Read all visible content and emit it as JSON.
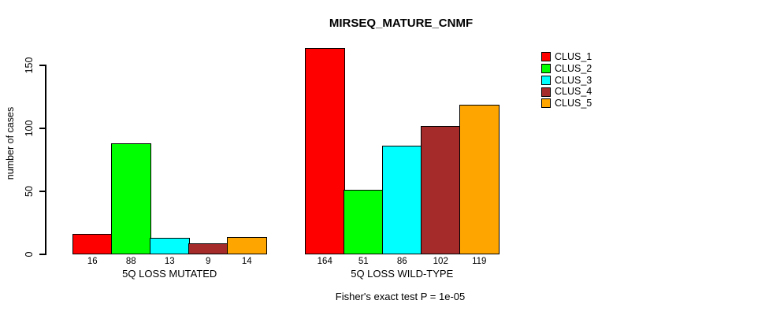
{
  "figure": {
    "background": "#FFFFFF",
    "axis_color": "#000000",
    "bar_outline_color": "#000000"
  },
  "chart_data": {
    "type": "bar",
    "title": "MIRSEQ_MATURE_CNMF",
    "xlabel": "",
    "ylabel": "number of cases",
    "ylim": [
      0,
      170
    ],
    "yticks": [
      0,
      50,
      100,
      150
    ],
    "grid": false,
    "legend_position": "top-right",
    "categories": [
      "5Q LOSS MUTATED",
      "5Q LOSS WILD-TYPE"
    ],
    "series": [
      {
        "name": "CLUS_1",
        "color": "#FF0000",
        "values": [
          16,
          164
        ]
      },
      {
        "name": "CLUS_2",
        "color": "#00FF00",
        "values": [
          88,
          51
        ]
      },
      {
        "name": "CLUS_3",
        "color": "#00FFFF",
        "values": [
          13,
          86
        ]
      },
      {
        "name": "CLUS_4",
        "color": "#A52A2A",
        "values": [
          9,
          102
        ]
      },
      {
        "name": "CLUS_5",
        "color": "#FFA500",
        "values": [
          14,
          119
        ]
      }
    ],
    "value_labels_shown": true,
    "footnote": "Fisher's exact test P = 1e-05"
  }
}
